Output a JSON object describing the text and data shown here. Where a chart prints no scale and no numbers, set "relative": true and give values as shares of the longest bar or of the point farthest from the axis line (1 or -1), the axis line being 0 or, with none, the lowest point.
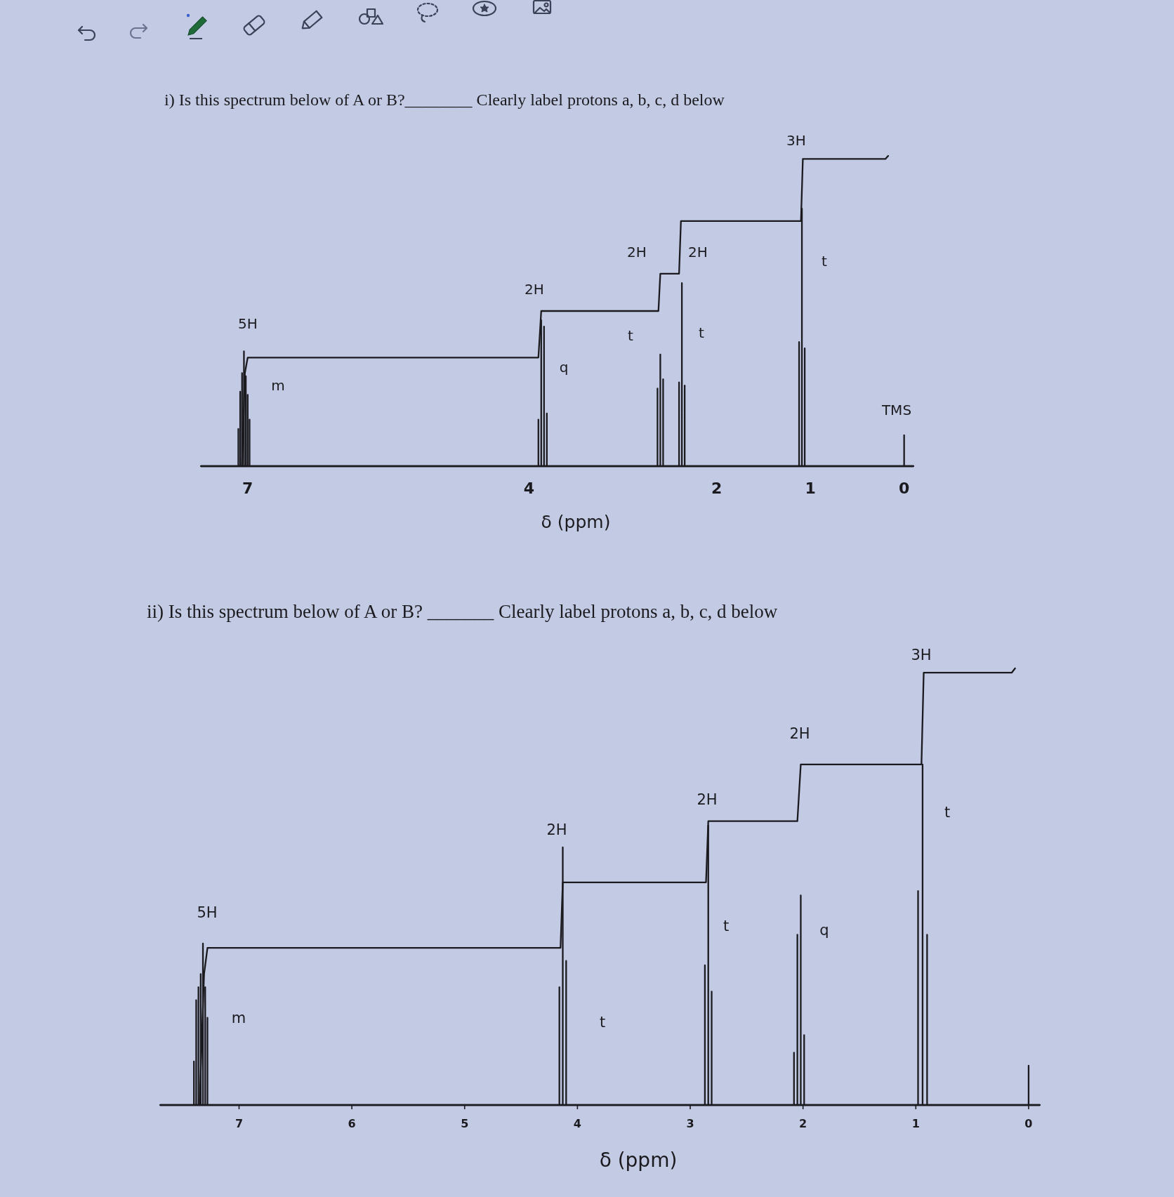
{
  "chart_data": [
    {
      "type": "line",
      "title": "i) Is this spectrum below of A or B?________ Clearly label protons a, b, c, d below",
      "xlabel": "δ (ppm)",
      "relative": true,
      "xlim": [
        7.5,
        -0.1
      ],
      "xticks": [
        7,
        4,
        2,
        1,
        0
      ],
      "series": [
        {
          "color": "#1b1b1f",
          "x": [
            7.5,
            7.1,
            7.1,
            7.1,
            7.08,
            7.08,
            7.08,
            7.06,
            7.06,
            7.06,
            7.04,
            7.04,
            7.04,
            7.02,
            7.02,
            7.02,
            7.0,
            7.0,
            7.0,
            6.98,
            6.98,
            6.98,
            3.9,
            3.9,
            3.9,
            3.87,
            3.87,
            3.87,
            3.84,
            3.84,
            3.84,
            3.81,
            3.81,
            3.81,
            2.63,
            2.63,
            2.63,
            2.6,
            2.6,
            2.6,
            2.57,
            2.57,
            2.57,
            2.4,
            2.4,
            2.4,
            2.37,
            2.37,
            2.37,
            2.34,
            2.34,
            2.34,
            1.12,
            1.12,
            1.12,
            1.09,
            1.09,
            1.09,
            1.06,
            1.06,
            1.06,
            0,
            0,
            0,
            -0.1
          ],
          "values": [
            0,
            0,
            0.12,
            0,
            0,
            0.24,
            0,
            0,
            0.3,
            0,
            0,
            0.37,
            0,
            0,
            0.29,
            0,
            0,
            0.23,
            0,
            0,
            0.15,
            0,
            0,
            0.15,
            0,
            0,
            0.47,
            0,
            0,
            0.45,
            0,
            0,
            0.17,
            0,
            0,
            0.25,
            0,
            0,
            0.36,
            0,
            0,
            0.28,
            0,
            0,
            0.27,
            0,
            0,
            0.59,
            0,
            0,
            0.26,
            0,
            0,
            0.4,
            0,
            0,
            0.83,
            0,
            0,
            0.38,
            0,
            0,
            0.1,
            0,
            0
          ]
        },
        {
          "color": "#1b1b1f",
          "x": [
            7.06,
            7.03,
            7.0,
            3.9,
            3.87,
            2.62,
            2.6,
            2.4,
            2.38,
            1.1,
            1.08,
            0.2,
            0.17
          ],
          "values": [
            0,
            0.3,
            0.35,
            0.35,
            0.5,
            0.5,
            0.62,
            0.62,
            0.79,
            0.79,
            0.99,
            0.99,
            1.0
          ]
        }
      ],
      "annotations": [
        "5H",
        "m",
        "2H",
        "q",
        "t",
        "2H",
        "2H",
        "t",
        "3H",
        "t",
        "TMS"
      ]
    },
    {
      "type": "line",
      "title": "ii) Is this spectrum below of A or B? _______ Clearly label protons a, b, c, d below",
      "xlabel": "δ (ppm)",
      "relative": true,
      "xlim": [
        7.7,
        -0.1
      ],
      "xticks": [
        7,
        6,
        5,
        4,
        3,
        2,
        1,
        0
      ],
      "series": [
        {
          "color": "#1b1b1f",
          "x": [
            7.7,
            7.4,
            7.4,
            7.4,
            7.38,
            7.38,
            7.38,
            7.36,
            7.36,
            7.36,
            7.34,
            7.34,
            7.34,
            7.32,
            7.32,
            7.32,
            7.3,
            7.3,
            7.3,
            7.28,
            7.28,
            7.28,
            4.16,
            4.16,
            4.16,
            4.13,
            4.13,
            4.13,
            4.1,
            4.1,
            4.1,
            2.87,
            2.87,
            2.87,
            2.84,
            2.84,
            2.84,
            2.81,
            2.81,
            2.81,
            2.08,
            2.08,
            2.08,
            2.05,
            2.05,
            2.05,
            2.02,
            2.02,
            2.02,
            1.99,
            1.99,
            1.99,
            0.98,
            0.98,
            0.98,
            0.94,
            0.94,
            0.94,
            0.9,
            0.9,
            0.9,
            0,
            0,
            0,
            -0.1
          ],
          "values": [
            0,
            0,
            0.1,
            0,
            0,
            0.24,
            0,
            0,
            0.27,
            0,
            0,
            0.3,
            0,
            0,
            0.37,
            0,
            0,
            0.27,
            0,
            0,
            0.2,
            0,
            0,
            0.27,
            0,
            0,
            0.59,
            0,
            0,
            0.33,
            0,
            0,
            0.32,
            0,
            0,
            0.64,
            0,
            0,
            0.26,
            0,
            0,
            0.12,
            0,
            0,
            0.39,
            0,
            0,
            0.48,
            0,
            0,
            0.16,
            0,
            0,
            0.49,
            0,
            0,
            0.78,
            0,
            0,
            0.39,
            0,
            0,
            0.09,
            0,
            0
          ]
        },
        {
          "color": "#1b1b1f",
          "x": [
            7.35,
            7.31,
            7.28,
            4.15,
            4.13,
            2.86,
            2.84,
            2.05,
            2.02,
            0.95,
            0.93,
            0.15,
            0.12
          ],
          "values": [
            0,
            0.3,
            0.36,
            0.36,
            0.51,
            0.51,
            0.65,
            0.65,
            0.78,
            0.78,
            0.99,
            0.99,
            1.0
          ]
        }
      ],
      "annotations": [
        "5H",
        "m",
        "2H",
        "t",
        "2H",
        "t",
        "2H",
        "q",
        "3H",
        "t"
      ]
    }
  ]
}
